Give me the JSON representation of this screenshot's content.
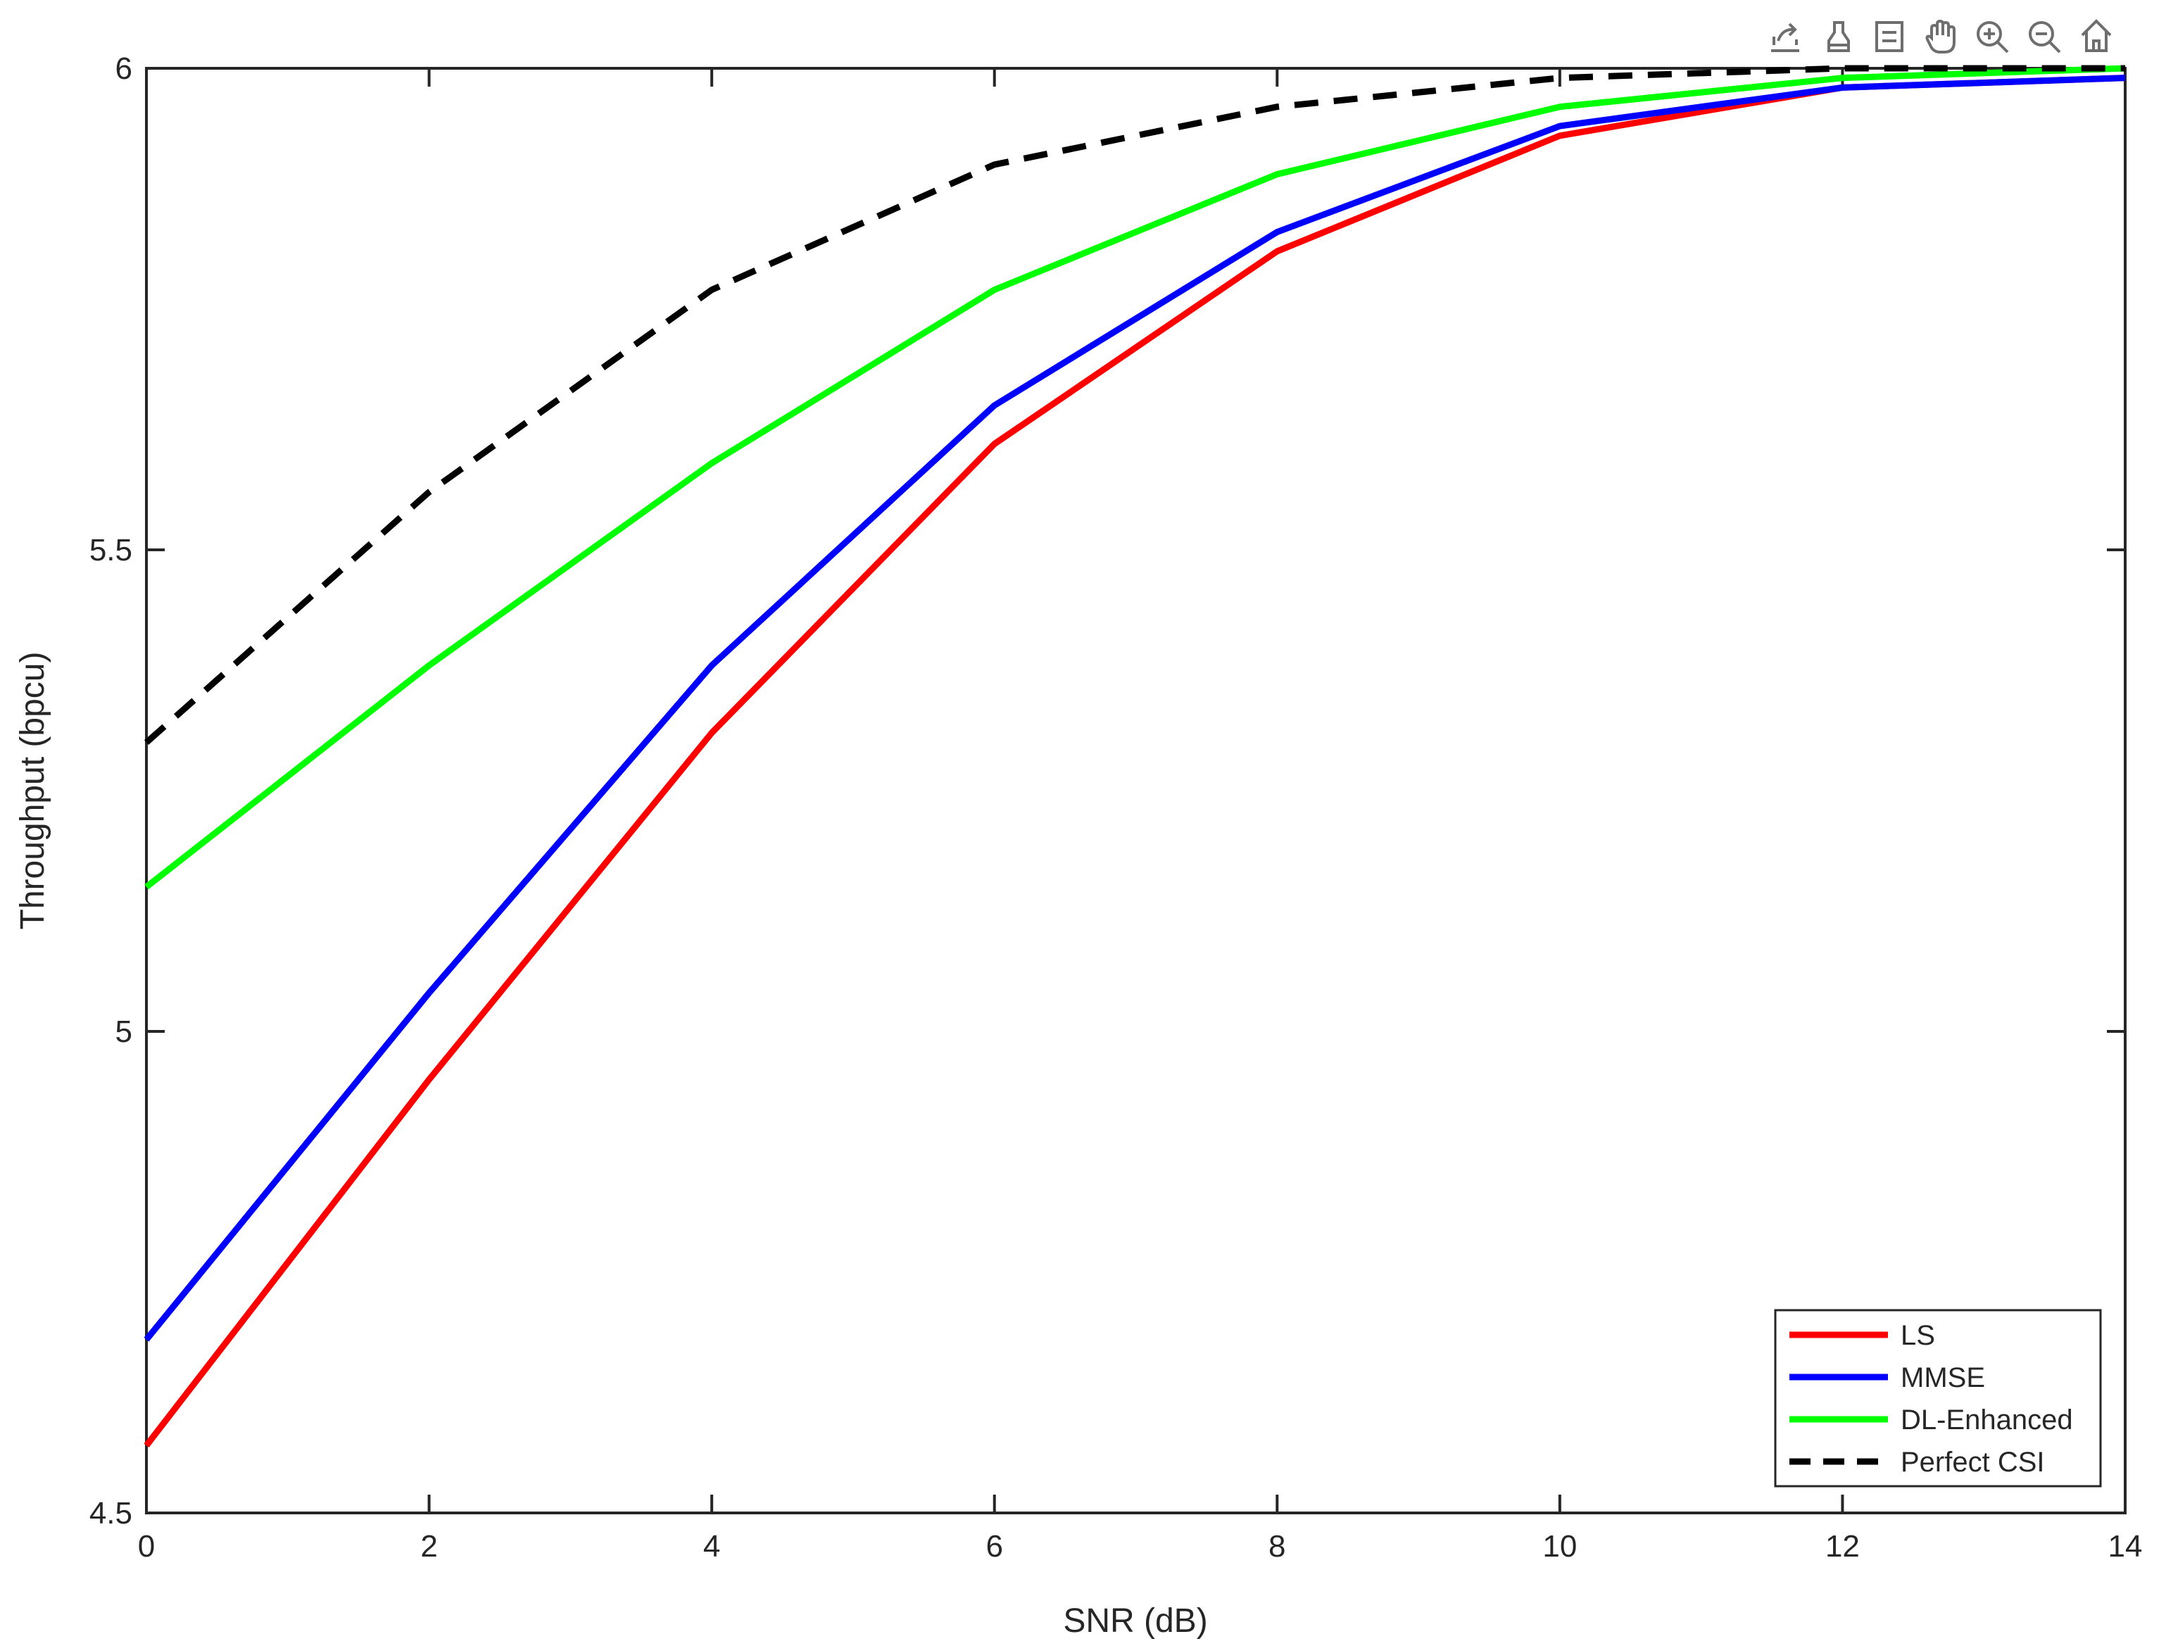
{
  "toolbar": {
    "icons": [
      "export-icon",
      "brush-icon",
      "datatip-icon",
      "pan-icon",
      "zoom-in-icon",
      "zoom-out-icon",
      "home-icon"
    ]
  },
  "chart_data": {
    "type": "line",
    "xlabel": "SNR (dB)",
    "ylabel": "Throughput (bpcu)",
    "xlim": [
      0,
      14
    ],
    "ylim": [
      4.5,
      6
    ],
    "xticks": [
      "0",
      "2",
      "4",
      "6",
      "8",
      "10",
      "12",
      "14"
    ],
    "yticks": [
      "4.5",
      "5",
      "5.5",
      "6"
    ],
    "grid": false,
    "legend_position": "bottom-right",
    "x": [
      0,
      2,
      4,
      6,
      8,
      10,
      12,
      14
    ],
    "series": [
      {
        "name": "LS",
        "color": "#ff0000",
        "dashed": false,
        "values": [
          4.57,
          4.95,
          5.31,
          5.61,
          5.81,
          5.93,
          5.98,
          5.99
        ]
      },
      {
        "name": "MMSE",
        "color": "#0000ff",
        "dashed": false,
        "values": [
          4.68,
          5.04,
          5.38,
          5.65,
          5.83,
          5.94,
          5.98,
          5.99
        ]
      },
      {
        "name": "DL-Enhanced",
        "color": "#00ff00",
        "dashed": false,
        "values": [
          5.15,
          5.38,
          5.59,
          5.77,
          5.89,
          5.96,
          5.99,
          6.0
        ]
      },
      {
        "name": "Perfect CSI",
        "color": "#000000",
        "dashed": true,
        "values": [
          5.3,
          5.56,
          5.77,
          5.9,
          5.96,
          5.99,
          6.0,
          6.0
        ]
      }
    ]
  }
}
